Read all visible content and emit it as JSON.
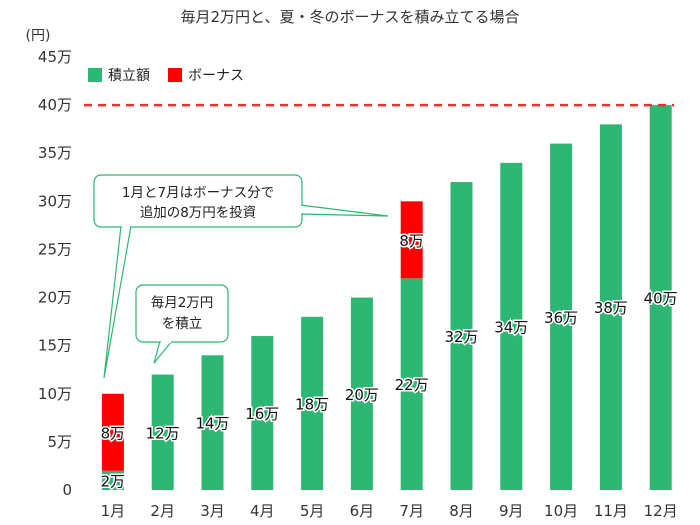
{
  "chart_data": {
    "type": "bar",
    "stacked": true,
    "title": "毎月2万円と、夏・冬のボーナスを積み立てる場合",
    "y_unit": "(円)",
    "categories": [
      "1月",
      "2月",
      "3月",
      "4月",
      "5月",
      "6月",
      "7月",
      "8月",
      "9月",
      "10月",
      "11月",
      "12月"
    ],
    "series": [
      {
        "name": "積立額",
        "color": "#2eb673",
        "values": [
          2,
          12,
          14,
          16,
          18,
          20,
          22,
          32,
          34,
          36,
          38,
          40
        ],
        "labels": [
          "2万",
          "12万",
          "14万",
          "16万",
          "18万",
          "20万",
          "22万",
          "32万",
          "34万",
          "36万",
          "38万",
          "40万"
        ]
      },
      {
        "name": "ボーナス",
        "color": "#ff0000",
        "values": [
          8,
          0,
          0,
          0,
          0,
          0,
          8,
          0,
          0,
          0,
          0,
          0
        ],
        "labels": [
          "8万",
          "",
          "",
          "",
          "",
          "",
          "8万",
          "",
          "",
          "",
          "",
          ""
        ]
      }
    ],
    "yticks": [
      0,
      5,
      10,
      15,
      20,
      25,
      30,
      35,
      40,
      45
    ],
    "ytick_labels": [
      "0",
      "5万",
      "10万",
      "15万",
      "20万",
      "25万",
      "30万",
      "35万",
      "40万",
      "45万"
    ],
    "ylim": [
      0,
      45
    ],
    "reference_line": {
      "value": 40,
      "color": "#e8322a",
      "style": "dashed"
    },
    "legend_position": "top-left",
    "annotations": [
      {
        "text": [
          "1月と7月はボーナス分で",
          "追加の8万円を投資"
        ]
      },
      {
        "text": [
          "毎月2万円",
          "を積立"
        ]
      }
    ]
  }
}
